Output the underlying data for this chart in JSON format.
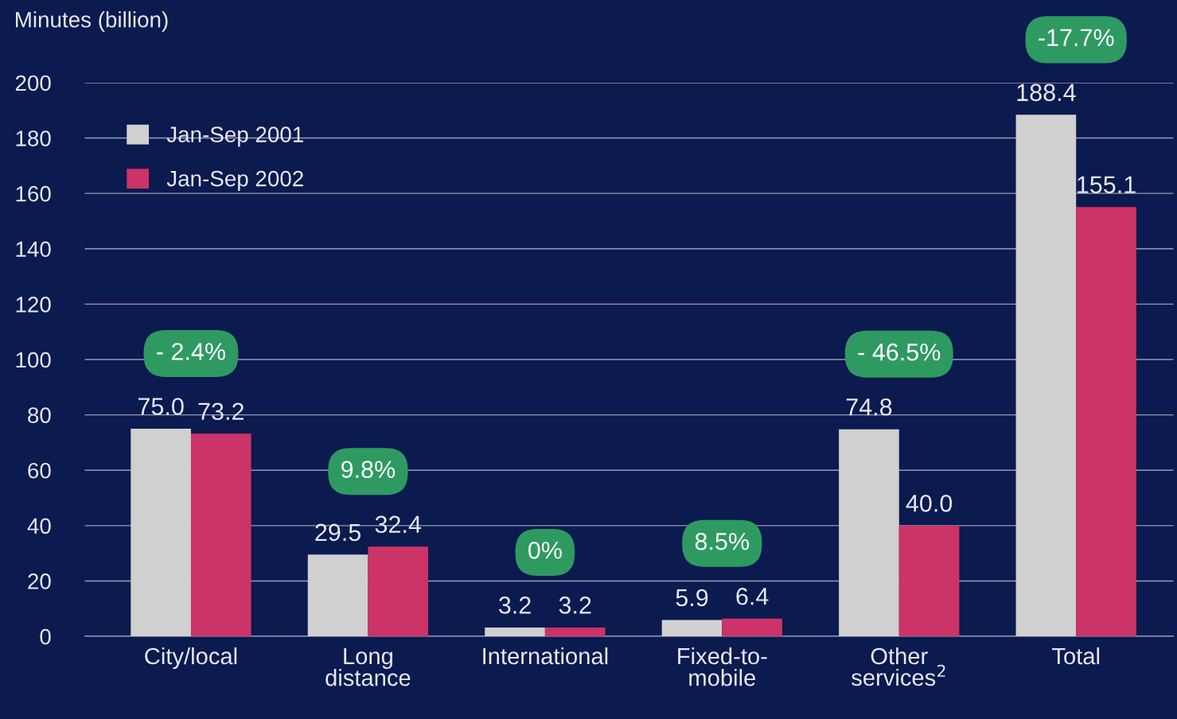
{
  "chart_data": {
    "type": "bar",
    "ylabel": "Minutes (billion)",
    "categories": [
      "City/local",
      "Long\ndistance",
      "International",
      "Fixed-to-\nmobile",
      "Other\nservices$^{2}$",
      "Total"
    ],
    "series": [
      {
        "name": "Jan-Sep 2001",
        "color": "#d0d0d0",
        "values": [
          75.0,
          29.5,
          3.2,
          5.9,
          74.8,
          188.4
        ],
        "value_labels": [
          "75.0",
          "29.5",
          "3.2",
          "5.9",
          "74.8",
          "188.4"
        ]
      },
      {
        "name": "Jan-Sep 2002",
        "color": "#cc3366",
        "values": [
          73.2,
          32.4,
          3.2,
          6.4,
          40.0,
          155.1
        ],
        "value_labels": [
          "73.2",
          "32.4",
          "3.2",
          "6.4",
          "40.0",
          "155.1"
        ]
      }
    ],
    "annotations": [
      "- 2.4%",
      "9.8%",
      "0%",
      "8.5%",
      "- 46.5%",
      "-17.7%"
    ],
    "ylim": [
      0,
      200
    ],
    "yticks": [
      0,
      20,
      40,
      60,
      80,
      100,
      120,
      140,
      160,
      180,
      200
    ],
    "grid": "y",
    "legend": "top left"
  }
}
